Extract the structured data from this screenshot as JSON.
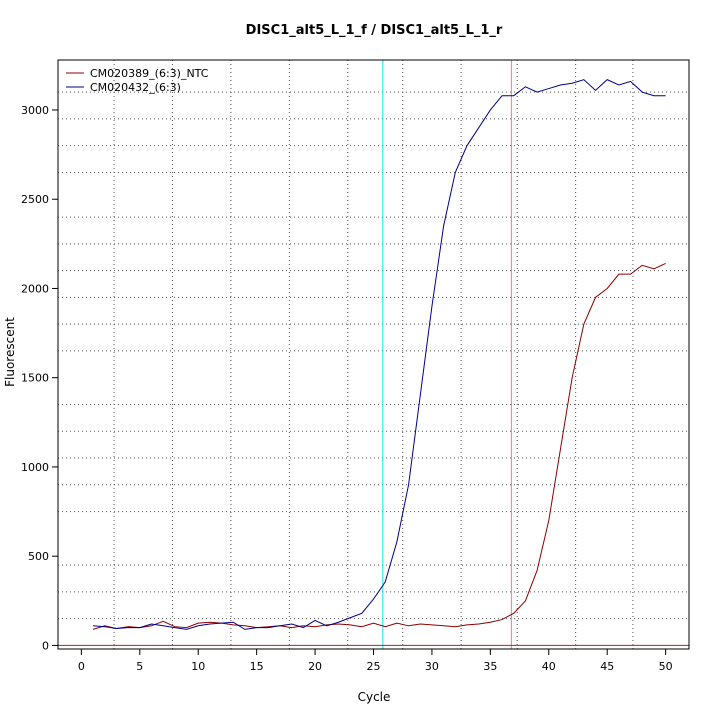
{
  "chart_data": {
    "type": "line",
    "title": "DISC1_alt5_L_1_f / DISC1_alt5_L_1_r",
    "xlabel": "Cycle",
    "ylabel": "Fluorescent",
    "xlim": [
      -2,
      52
    ],
    "ylim": [
      -20,
      3280
    ],
    "xticks": [
      0,
      5,
      10,
      15,
      20,
      25,
      30,
      35,
      40,
      45,
      50
    ],
    "yticks": [
      0,
      500,
      1000,
      1500,
      2000,
      2500,
      3000
    ],
    "x_gridlines": [
      2.8,
      7.8,
      12.8,
      17.8,
      22.8,
      27.5,
      32.5,
      37.3,
      42.3,
      47.2
    ],
    "y_gridlines": [
      150,
      300,
      450,
      750,
      900,
      1050,
      1200,
      1350,
      1650,
      1800,
      1950,
      2100,
      2250,
      2400,
      2650,
      2800,
      2950,
      3100
    ],
    "grid": true,
    "legend_position": "top-left",
    "threshold": {
      "value": 0,
      "color": "#b22222"
    },
    "vlines": [
      {
        "x": 25.8,
        "color": "#00e5ee"
      },
      {
        "x": 36.8,
        "color": "#f08080"
      }
    ],
    "series": [
      {
        "name": "CM020389_(6:3)_NTC",
        "color": "#8b0000",
        "x": [
          1,
          2,
          3,
          4,
          5,
          6,
          7,
          8,
          9,
          10,
          11,
          12,
          13,
          14,
          15,
          16,
          17,
          18,
          19,
          20,
          21,
          22,
          23,
          24,
          25,
          26,
          27,
          28,
          29,
          30,
          31,
          32,
          33,
          34,
          35,
          36,
          37,
          38,
          39,
          40,
          41,
          42,
          43,
          44,
          45,
          46,
          47,
          48,
          49,
          50
        ],
        "values": [
          90,
          110,
          95,
          105,
          100,
          110,
          135,
          105,
          100,
          125,
          130,
          125,
          115,
          110,
          100,
          105,
          110,
          100,
          110,
          105,
          115,
          120,
          115,
          105,
          125,
          105,
          125,
          110,
          120,
          115,
          110,
          105,
          115,
          120,
          130,
          145,
          180,
          250,
          420,
          700,
          1100,
          1500,
          1800,
          1950,
          2000,
          2080,
          2080,
          2130,
          2110,
          2140
        ]
      },
      {
        "name": "CM020432_(6:3)",
        "color": "#00008b",
        "x": [
          1,
          2,
          3,
          4,
          5,
          6,
          7,
          8,
          9,
          10,
          11,
          12,
          13,
          14,
          15,
          16,
          17,
          18,
          19,
          20,
          21,
          22,
          23,
          24,
          25,
          26,
          27,
          28,
          29,
          30,
          31,
          32,
          33,
          34,
          35,
          36,
          37,
          38,
          39,
          40,
          41,
          42,
          43,
          44,
          45,
          46,
          47,
          48,
          49,
          50
        ],
        "values": [
          110,
          105,
          95,
          100,
          100,
          120,
          110,
          100,
          90,
          110,
          120,
          125,
          130,
          90,
          100,
          100,
          110,
          120,
          100,
          140,
          110,
          130,
          155,
          180,
          260,
          355,
          580,
          900,
          1400,
          1900,
          2350,
          2650,
          2800,
          2900,
          3000,
          3080,
          3080,
          3130,
          3100,
          3120,
          3140,
          3150,
          3170,
          3110,
          3170,
          3140,
          3160,
          3100,
          3080,
          3080
        ]
      }
    ]
  }
}
